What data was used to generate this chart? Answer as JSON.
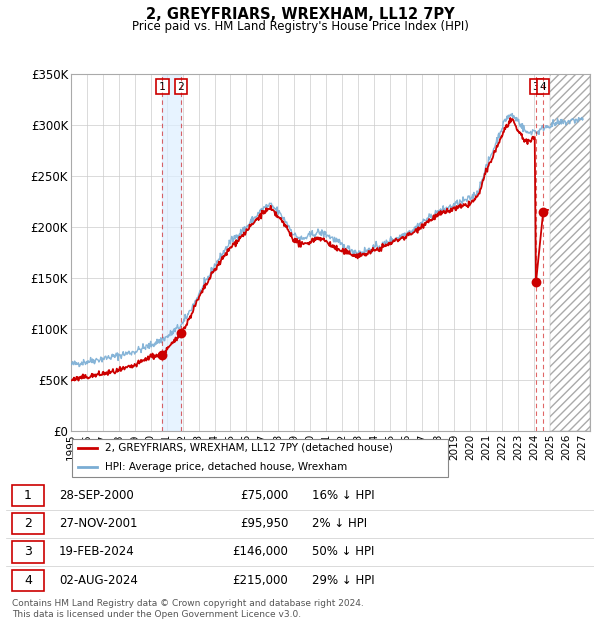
{
  "title": "2, GREYFRIARS, WREXHAM, LL12 7PY",
  "subtitle": "Price paid vs. HM Land Registry's House Price Index (HPI)",
  "footer": "Contains HM Land Registry data © Crown copyright and database right 2024.\nThis data is licensed under the Open Government Licence v3.0.",
  "ylim": [
    0,
    350000
  ],
  "yticks": [
    0,
    50000,
    100000,
    150000,
    200000,
    250000,
    300000,
    350000
  ],
  "ytick_labels": [
    "£0",
    "£50K",
    "£100K",
    "£150K",
    "£200K",
    "£250K",
    "£300K",
    "£350K"
  ],
  "xmin": 1995.0,
  "xmax": 2027.5,
  "transactions": [
    {
      "num": 1,
      "date": "28-SEP-2000",
      "x": 2000.74,
      "price": 75000,
      "pct": "16%",
      "dir": "↓"
    },
    {
      "num": 2,
      "date": "27-NOV-2001",
      "x": 2001.9,
      "price": 95950,
      "pct": "2%",
      "dir": "↓"
    },
    {
      "num": 3,
      "date": "19-FEB-2024",
      "x": 2024.13,
      "price": 146000,
      "pct": "50%",
      "dir": "↓"
    },
    {
      "num": 4,
      "date": "02-AUG-2024",
      "x": 2024.58,
      "price": 215000,
      "pct": "29%",
      "dir": "↓"
    }
  ],
  "red_line_color": "#cc0000",
  "blue_line_color": "#7aadd4",
  "dot_color": "#cc0000",
  "hatch_start": 2025.0,
  "legend_label_red": "2, GREYFRIARS, WREXHAM, LL12 7PY (detached house)",
  "legend_label_blue": "HPI: Average price, detached house, Wrexham",
  "hpi_anchors_x": [
    1995,
    1996,
    1997,
    1998,
    1999,
    2000,
    2001,
    2002,
    2003,
    2004,
    2005,
    2006,
    2007,
    2007.5,
    2008,
    2008.5,
    2009,
    2009.5,
    2010,
    2010.5,
    2011,
    2011.5,
    2012,
    2012.5,
    2013,
    2013.5,
    2014,
    2014.5,
    2015,
    2015.5,
    2016,
    2016.5,
    2017,
    2017.5,
    2018,
    2018.5,
    2019,
    2019.5,
    2020,
    2020.5,
    2021,
    2021.5,
    2022,
    2022.3,
    2022.6,
    2023,
    2023.3,
    2023.6,
    2024,
    2024.2,
    2024.4,
    2024.6,
    2025,
    2025.5,
    2026,
    2026.5,
    2027
  ],
  "hpi_anchors_y": [
    65000,
    68000,
    71000,
    74000,
    78000,
    84000,
    92000,
    105000,
    133000,
    162000,
    186000,
    200000,
    218000,
    222000,
    215000,
    205000,
    192000,
    188000,
    192000,
    195000,
    193000,
    188000,
    182000,
    178000,
    175000,
    177000,
    180000,
    182000,
    187000,
    190000,
    194000,
    198000,
    205000,
    210000,
    215000,
    218000,
    222000,
    225000,
    228000,
    235000,
    258000,
    278000,
    298000,
    308000,
    310000,
    305000,
    298000,
    292000,
    295000,
    293000,
    295000,
    298000,
    300000,
    302000,
    303000,
    305000,
    306000
  ],
  "red_anchors_x": [
    1995,
    1996,
    1997,
    1998,
    1999,
    2000,
    2000.74,
    2001.5,
    2001.9,
    2002.2,
    2003,
    2004,
    2005,
    2006,
    2007,
    2007.5,
    2008,
    2008.5,
    2009,
    2009.5,
    2010,
    2010.5,
    2011,
    2011.5,
    2012,
    2012.5,
    2013,
    2013.5,
    2014,
    2014.5,
    2015,
    2015.5,
    2016,
    2016.5,
    2017,
    2017.5,
    2018,
    2018.5,
    2019,
    2019.5,
    2020,
    2020.5,
    2021,
    2021.5,
    2022,
    2022.3,
    2022.6,
    2023,
    2023.3,
    2023.6,
    2024.0,
    2024.12,
    2024.13,
    2024.57,
    2024.58,
    2024.8
  ],
  "red_anchors_y": [
    50000,
    53000,
    56000,
    59000,
    64000,
    73000,
    75000,
    88000,
    95950,
    103000,
    130000,
    158000,
    180000,
    196000,
    214000,
    218000,
    210000,
    200000,
    187000,
    182000,
    186000,
    190000,
    186000,
    180000,
    176000,
    174000,
    172000,
    174000,
    177000,
    180000,
    184000,
    188000,
    191000,
    195000,
    202000,
    207000,
    212000,
    215000,
    218000,
    220000,
    223000,
    230000,
    254000,
    272000,
    290000,
    300000,
    305000,
    295000,
    288000,
    283000,
    287000,
    290000,
    146000,
    146000,
    215000,
    217000
  ]
}
